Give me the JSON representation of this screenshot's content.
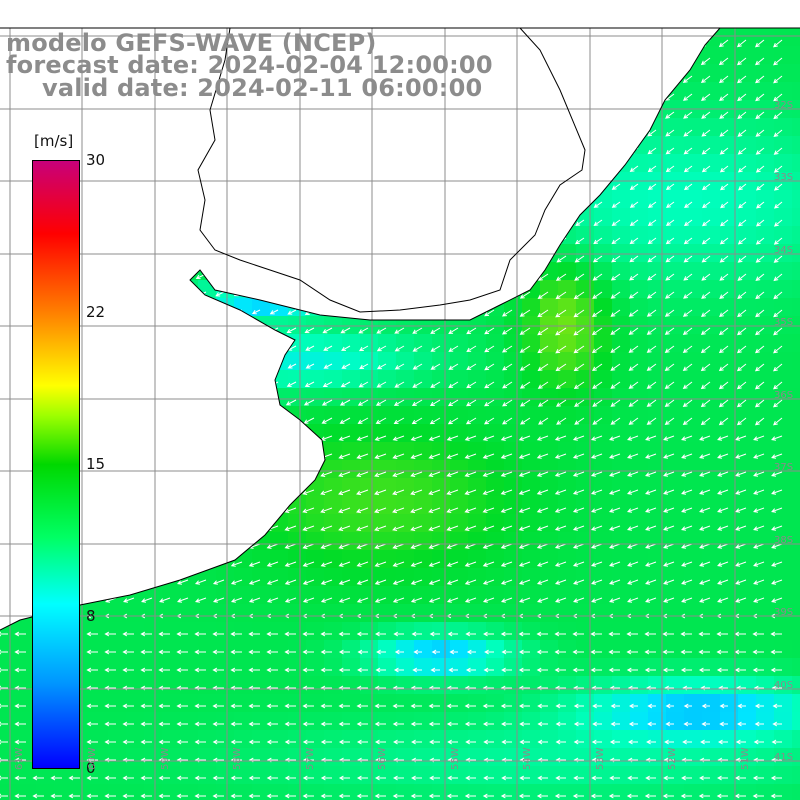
{
  "header": {
    "line1": "modelo GEFS-WAVE (NCEP)",
    "line2": "forecast date: 2024-02-04 12:00:00",
    "line3": "valid date: 2024-02-11 06:00:00"
  },
  "legend": {
    "unit": "[m/s]",
    "ticks": [
      "30",
      "22",
      "15",
      "8",
      "0"
    ],
    "colors": [
      "#0000ff",
      "#0096ff",
      "#00ffff",
      "#00ff64",
      "#00d800",
      "#9cff00",
      "#ffff00",
      "#ff8000",
      "#ff0000",
      "#c8007a"
    ]
  },
  "axes": {
    "lat_labels": [
      "32S",
      "33S",
      "34S",
      "35S",
      "36S",
      "37S",
      "38S",
      "39S",
      "40S",
      "41S"
    ],
    "lon_labels": [
      "61W",
      "60W",
      "59W",
      "58W",
      "57W",
      "56W",
      "55W",
      "54W",
      "53W",
      "52W",
      "51W"
    ]
  },
  "style": {
    "grid": "#8c8c8c",
    "coast": "#000000",
    "land": "#ffffff",
    "arrow": "#ffffff"
  }
}
